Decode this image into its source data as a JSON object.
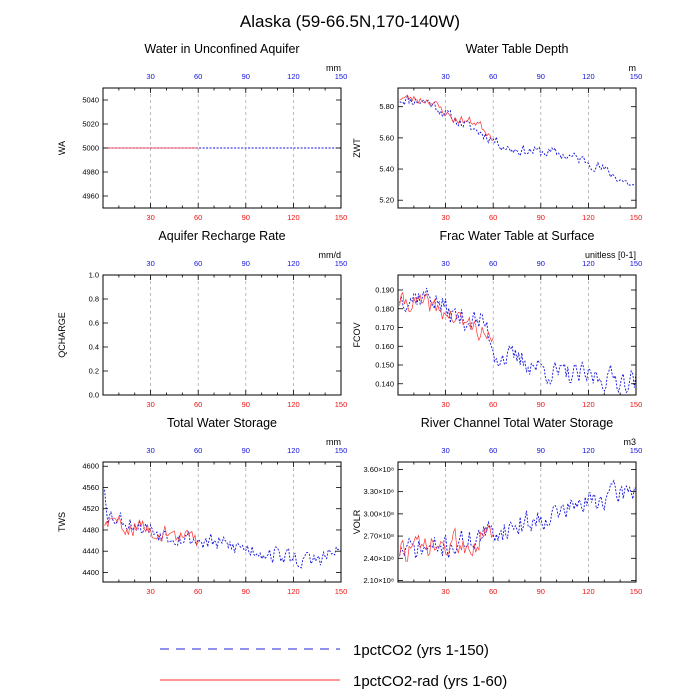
{
  "title": "Alaska (59-66.5N,170-140W)",
  "legend": [
    {
      "label": "1pctCO2 (yrs 1-150)",
      "color": "#2222dd",
      "style": "dashed"
    },
    {
      "label": "1pctCO2-rad (yrs 1-60)",
      "color": "#ff3333",
      "style": "solid"
    }
  ],
  "colors": {
    "series_blue": "#1111dd",
    "series_red": "#ff3333",
    "grid": "#aaaaaa"
  },
  "chart_data": [
    {
      "type": "line",
      "title": "Water in Unconfined Aquifer",
      "ylabel": "WA",
      "unit": "mm",
      "xlim": [
        0,
        150
      ],
      "ylim": [
        4950,
        5050
      ],
      "yticks": [
        4960,
        4980,
        5000,
        5020,
        5040
      ],
      "ytick_labels": [
        "4960",
        "4980",
        "5000",
        "5020",
        "5040"
      ],
      "xticks": [
        30,
        60,
        90,
        120,
        150
      ],
      "xtick_labels": [
        "30",
        "60",
        "90",
        "120",
        "150"
      ],
      "grid_x": [
        30,
        60,
        90,
        120
      ],
      "series": [
        {
          "name": "1pctCO2 (yrs 1-150)",
          "gen": {
            "n": 150,
            "kind": "flat",
            "base": 5000
          }
        },
        {
          "name": "1pctCO2-rad (yrs 1-60)",
          "gen": {
            "n": 60,
            "kind": "flat",
            "base": 5000
          }
        }
      ]
    },
    {
      "type": "line",
      "title": "Water Table Depth",
      "ylabel": "ZWT",
      "unit": "m",
      "xlim": [
        0,
        150
      ],
      "ylim": [
        5.15,
        5.92
      ],
      "yticks": [
        5.2,
        5.4,
        5.6,
        5.8
      ],
      "ytick_labels": [
        "5.20",
        "5.40",
        "5.60",
        "5.80"
      ],
      "xticks": [
        30,
        60,
        90,
        120,
        150
      ],
      "xtick_labels": [
        "30",
        "60",
        "90",
        "120",
        "150"
      ],
      "grid_x": [
        30,
        60,
        90,
        120
      ],
      "series": [
        {
          "name": "1pctCO2 (yrs 1-150)",
          "gen": {
            "n": 150,
            "kind": "trend",
            "pts": [
              [
                0,
                5.85
              ],
              [
                20,
                5.83
              ],
              [
                35,
                5.72
              ],
              [
                55,
                5.62
              ],
              [
                70,
                5.53
              ],
              [
                100,
                5.5
              ],
              [
                120,
                5.45
              ],
              [
                150,
                5.28
              ]
            ],
            "noise": 0.05,
            "seed": 11
          }
        },
        {
          "name": "1pctCO2-rad (yrs 1-60)",
          "gen": {
            "n": 60,
            "kind": "trend",
            "pts": [
              [
                0,
                5.86
              ],
              [
                20,
                5.84
              ],
              [
                35,
                5.72
              ],
              [
                50,
                5.7
              ],
              [
                60,
                5.6
              ]
            ],
            "noise": 0.04,
            "seed": 23
          }
        }
      ]
    },
    {
      "type": "line",
      "title": "Aquifer Recharge Rate",
      "ylabel": "QCHARGE",
      "unit": "mm/d",
      "xlim": [
        0,
        150
      ],
      "ylim": [
        0,
        1
      ],
      "yticks": [
        0,
        0.2,
        0.4,
        0.6,
        0.8,
        1.0
      ],
      "ytick_labels": [
        "0.0",
        "0.2",
        "0.4",
        "0.6",
        "0.8",
        "1.0"
      ],
      "xticks": [
        30,
        60,
        90,
        120,
        150
      ],
      "xtick_labels": [
        "30",
        "60",
        "90",
        "120",
        "150"
      ],
      "grid_x": [
        30,
        60,
        90,
        120
      ],
      "series": []
    },
    {
      "type": "line",
      "title": "Frac Water Table at Surface",
      "ylabel": "FCOV",
      "unit": "unitless [0-1]",
      "xlim": [
        0,
        150
      ],
      "ylim": [
        0.134,
        0.198
      ],
      "yticks": [
        0.14,
        0.15,
        0.16,
        0.17,
        0.18,
        0.19
      ],
      "ytick_labels": [
        "0.140",
        "0.150",
        "0.160",
        "0.170",
        "0.180",
        "0.190"
      ],
      "xticks": [
        30,
        60,
        90,
        120,
        150
      ],
      "xtick_labels": [
        "30",
        "60",
        "90",
        "120",
        "150"
      ],
      "grid_x": [
        30,
        60,
        90,
        120
      ],
      "series": [
        {
          "name": "1pctCO2 (yrs 1-150)",
          "gen": {
            "n": 150,
            "kind": "trend",
            "pts": [
              [
                0,
                0.186
              ],
              [
                20,
                0.187
              ],
              [
                35,
                0.176
              ],
              [
                55,
                0.172
              ],
              [
                62,
                0.155
              ],
              [
                80,
                0.152
              ],
              [
                100,
                0.145
              ],
              [
                150,
                0.142
              ]
            ],
            "noise": 0.009,
            "seed": 37
          }
        },
        {
          "name": "1pctCO2-rad (yrs 1-60)",
          "gen": {
            "n": 60,
            "kind": "trend",
            "pts": [
              [
                0,
                0.184
              ],
              [
                20,
                0.182
              ],
              [
                35,
                0.175
              ],
              [
                50,
                0.17
              ],
              [
                60,
                0.16
              ]
            ],
            "noise": 0.007,
            "seed": 41
          }
        }
      ]
    },
    {
      "type": "line",
      "title": "Total Water Storage",
      "ylabel": "TWS",
      "unit": "mm",
      "xlim": [
        0,
        150
      ],
      "ylim": [
        4382,
        4608
      ],
      "yticks": [
        4400,
        4440,
        4480,
        4520,
        4560,
        4600
      ],
      "ytick_labels": [
        "4400",
        "4440",
        "4480",
        "4520",
        "4560",
        "4600"
      ],
      "xticks": [
        30,
        60,
        90,
        120,
        150
      ],
      "xtick_labels": [
        "30",
        "60",
        "90",
        "120",
        "150"
      ],
      "grid_x": [
        30,
        60,
        90,
        120
      ],
      "series": [
        {
          "name": "1pctCO2 (yrs 1-150)",
          "gen": {
            "n": 150,
            "kind": "trend",
            "pts": [
              [
                0,
                4590
              ],
              [
                3,
                4510
              ],
              [
                30,
                4480
              ],
              [
                60,
                4460
              ],
              [
                100,
                4440
              ],
              [
                130,
                4420
              ],
              [
                150,
                4440
              ]
            ],
            "noise": 24,
            "seed": 53
          }
        },
        {
          "name": "1pctCO2-rad (yrs 1-60)",
          "gen": {
            "n": 60,
            "kind": "trend",
            "pts": [
              [
                0,
                4495
              ],
              [
                30,
                4480
              ],
              [
                60,
                4460
              ]
            ],
            "noise": 22,
            "seed": 59
          }
        }
      ]
    },
    {
      "type": "line",
      "title": "River Channel Total Water Storage",
      "ylabel": "VOLR",
      "unit": "m3",
      "xlim": [
        0,
        150
      ],
      "ylim": [
        208000000.0,
        370000000.0
      ],
      "yticks": [
        210000000.0,
        240000000.0,
        270000000.0,
        300000000.0,
        330000000.0,
        360000000.0
      ],
      "ytick_labels": [
        "2.10×10⁸",
        "2.40×10⁸",
        "2.70×10⁸",
        "3.00×10⁸",
        "3.30×10⁸",
        "3.60×10⁸"
      ],
      "xticks": [
        30,
        60,
        90,
        120,
        150
      ],
      "xtick_labels": [
        "30",
        "60",
        "90",
        "120",
        "150"
      ],
      "grid_x": [
        30,
        60,
        90,
        120
      ],
      "series": [
        {
          "name": "1pctCO2 (yrs 1-150)",
          "gen": {
            "n": 150,
            "kind": "trend",
            "pts": [
              [
                0,
                250000000.0
              ],
              [
                30,
                255000000.0
              ],
              [
                60,
                275000000.0
              ],
              [
                90,
                295000000.0
              ],
              [
                120,
                315000000.0
              ],
              [
                150,
                335000000.0
              ]
            ],
            "noise": 22000000.0,
            "seed": 71
          }
        },
        {
          "name": "1pctCO2-rad (yrs 1-60)",
          "gen": {
            "n": 60,
            "kind": "trend",
            "pts": [
              [
                0,
                250000000.0
              ],
              [
                30,
                255000000.0
              ],
              [
                60,
                270000000.0
              ]
            ],
            "noise": 25000000.0,
            "seed": 73
          }
        }
      ]
    }
  ]
}
